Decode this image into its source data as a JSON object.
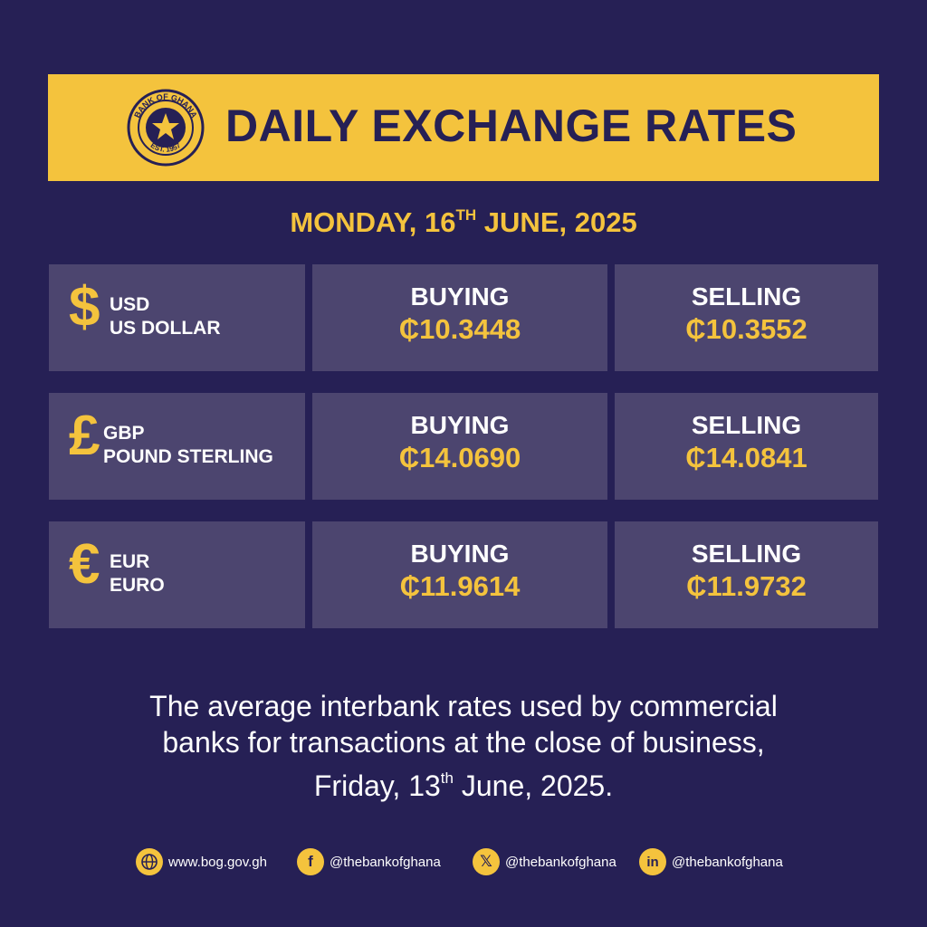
{
  "header": {
    "title": "DAILY EXCHANGE RATES",
    "seal_text_top": "BANK OF GHANA",
    "seal_text_bottom": "EST. 1957"
  },
  "date": {
    "weekday": "MONDAY, 16",
    "suffix": "TH",
    "rest": " JUNE, 2025"
  },
  "rates": [
    {
      "symbol": "$",
      "code": "USD",
      "name": "US DOLLAR",
      "buy_label": "BUYING",
      "buy": "₵10.3448",
      "sell_label": "SELLING",
      "sell": "₵10.3552"
    },
    {
      "symbol": "£",
      "code": "GBP",
      "name": "POUND STERLING",
      "buy_label": "BUYING",
      "buy": "₵14.0690",
      "sell_label": "SELLING",
      "sell": "₵14.0841"
    },
    {
      "symbol": "€",
      "code": "EUR",
      "name": "EURO",
      "buy_label": "BUYING",
      "buy": "₵11.9614",
      "sell_label": "SELLING",
      "sell": "₵11.9732"
    }
  ],
  "footnote": {
    "line1": "The average interbank rates used by commercial",
    "line2": "banks for transactions at the close of business,",
    "line3_a": "Friday, 13",
    "line3_sup": "th",
    "line3_b": " June, 2025."
  },
  "contacts": [
    {
      "icon": "globe-icon",
      "text": "www.bog.gov.gh"
    },
    {
      "icon": "facebook-icon",
      "text": "@thebankofghana"
    },
    {
      "icon": "x-icon",
      "text": "@thebankofghana"
    },
    {
      "icon": "linkedin-icon",
      "text": "@thebankofghana"
    }
  ],
  "colors": {
    "background": "#262055",
    "accent": "#f4c33d",
    "cell": "#4c456f"
  }
}
